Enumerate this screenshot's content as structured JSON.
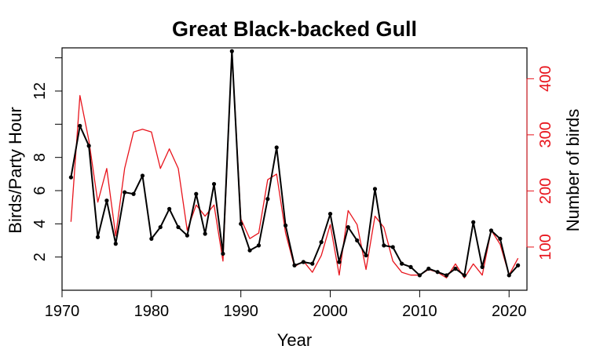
{
  "chart_data": {
    "type": "line",
    "title": "Great Black-backed Gull",
    "xlabel": "Year",
    "ylabel_left": "Birds/Party Hour",
    "ylabel_right": "Number of birds",
    "xlim": [
      1970,
      2022
    ],
    "ylim_left": [
      0.0,
      14.6
    ],
    "ylim_right": [
      23,
      455
    ],
    "x_ticks": [
      1970,
      1980,
      1990,
      2000,
      2010,
      2020
    ],
    "y_left_ticks": [
      2,
      4,
      6,
      8,
      10,
      12,
      14
    ],
    "y_left_tick_labels": [
      "2",
      "4",
      "6",
      "8",
      "",
      "12",
      ""
    ],
    "y_right_ticks": [
      100,
      200,
      300,
      400
    ],
    "y_right_tick_labels": [
      "100",
      "200",
      "300",
      "400"
    ],
    "grid": false,
    "colors": {
      "left_series": "#000000",
      "right_series": "#e8141c",
      "right_axis": "#e8141c"
    },
    "x": [
      1971,
      1972,
      1973,
      1974,
      1975,
      1976,
      1977,
      1978,
      1979,
      1980,
      1981,
      1982,
      1983,
      1984,
      1985,
      1986,
      1987,
      1988,
      1989,
      1990,
      1991,
      1992,
      1993,
      1994,
      1995,
      1996,
      1997,
      1998,
      1999,
      2000,
      2001,
      2002,
      2003,
      2004,
      2005,
      2006,
      2007,
      2008,
      2009,
      2010,
      2011,
      2012,
      2013,
      2014,
      2015,
      2016,
      2017,
      2018,
      2019,
      2020,
      2021
    ],
    "series": [
      {
        "axis": "left",
        "markers": true,
        "values": [
          6.8,
          9.9,
          8.7,
          3.2,
          5.4,
          2.8,
          5.9,
          5.8,
          6.9,
          3.1,
          3.8,
          4.9,
          3.8,
          3.3,
          5.8,
          3.4,
          6.4,
          2.2,
          14.4,
          4.0,
          2.4,
          2.7,
          5.5,
          8.6,
          3.9,
          1.5,
          1.7,
          1.6,
          2.9,
          4.6,
          1.7,
          3.8,
          3.0,
          2.1,
          6.1,
          2.7,
          2.6,
          1.6,
          1.4,
          0.9,
          1.3,
          1.1,
          0.9,
          1.3,
          0.9,
          4.1,
          1.4,
          3.6,
          3.1,
          0.9,
          1.5
        ]
      },
      {
        "axis": "right",
        "markers": false,
        "values": [
          145,
          370,
          290,
          180,
          240,
          120,
          240,
          305,
          310,
          305,
          240,
          275,
          240,
          130,
          175,
          155,
          175,
          75,
          450,
          150,
          115,
          125,
          220,
          230,
          125,
          65,
          75,
          55,
          85,
          140,
          50,
          165,
          140,
          60,
          155,
          135,
          75,
          55,
          50,
          50,
          60,
          55,
          45,
          70,
          45,
          70,
          50,
          130,
          105,
          50,
          80
        ]
      }
    ]
  }
}
